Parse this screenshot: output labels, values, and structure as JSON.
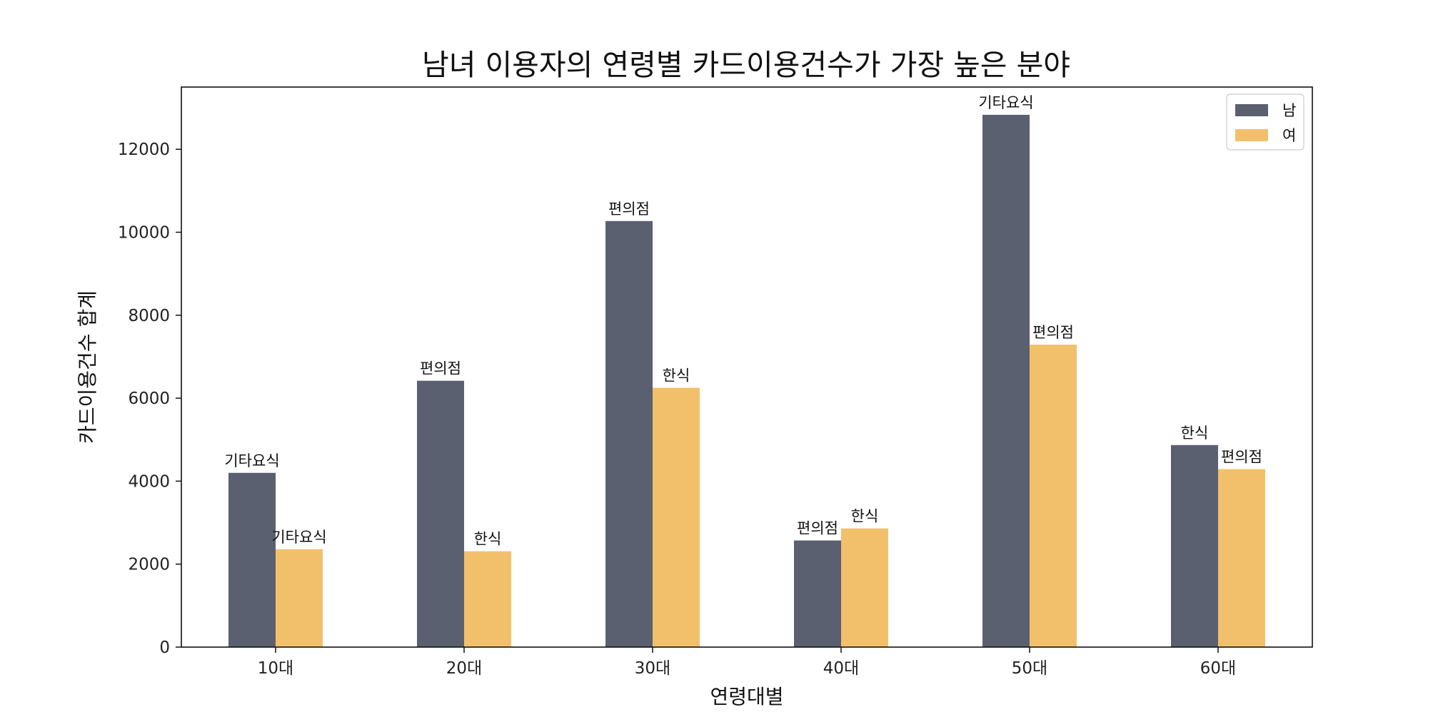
{
  "chart_data": {
    "type": "bar",
    "title": "남녀 이용자의 연령별 카드이용건수가 가장 높은 분야",
    "xlabel": "연령대별",
    "ylabel": "카드이용건수 합계",
    "categories": [
      "10대",
      "20대",
      "30대",
      "40대",
      "50대",
      "60대"
    ],
    "ylim": [
      0,
      13500
    ],
    "yticks": [
      0,
      2000,
      4000,
      6000,
      8000,
      10000,
      12000
    ],
    "legend_position": "top-right",
    "grid": false,
    "series": [
      {
        "name": "남",
        "color": "#5b6070",
        "values": [
          4200,
          6420,
          10270,
          2570,
          12830,
          4870
        ],
        "labels": [
          "기타요식",
          "편의점",
          "편의점",
          "편의점",
          "기타요식",
          "한식"
        ]
      },
      {
        "name": "여",
        "color": "#f2c06b",
        "values": [
          2360,
          2310,
          6250,
          2860,
          7290,
          4290
        ],
        "labels": [
          "기타요식",
          "한식",
          "한식",
          "한식",
          "편의점",
          "편의점"
        ]
      }
    ]
  }
}
